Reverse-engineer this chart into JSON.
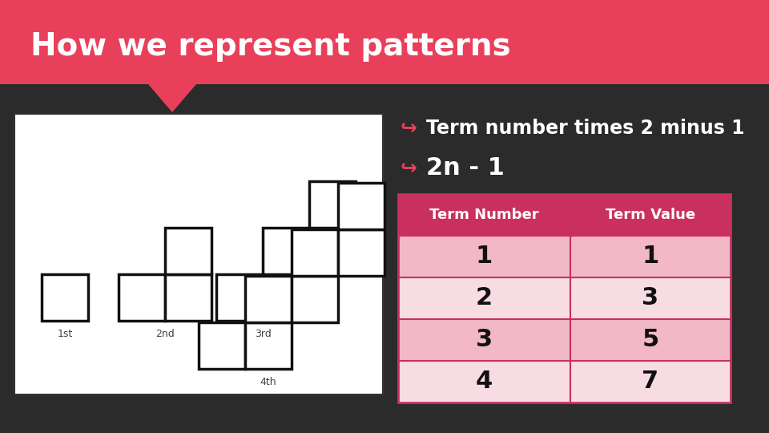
{
  "title": "How we represent patterns",
  "title_bg_color": "#e8405a",
  "background_color": "#2b2b2b",
  "title_text_color": "#ffffff",
  "bullet1": "Term number times 2 minus 1",
  "bullet2": "2n - 1",
  "bullet_color": "#ffffff",
  "bullet_icon_color": "#e8405a",
  "table_header": [
    "Term Number",
    "Term Value"
  ],
  "table_data": [
    [
      1,
      1
    ],
    [
      2,
      3
    ],
    [
      3,
      5
    ],
    [
      4,
      7
    ]
  ],
  "table_header_bg": "#c93060",
  "table_row_colors": [
    "#f2b8c6",
    "#f8dce4",
    "#f2b8c6",
    "#f8dce4"
  ],
  "table_border_color": "#c93060",
  "table_text_dark": "#111111",
  "table_header_text": "#ffffff",
  "img_bg": "#ffffff",
  "img_border": "#333333",
  "sq_color": "#ffffff",
  "sq_edge": "#111111"
}
